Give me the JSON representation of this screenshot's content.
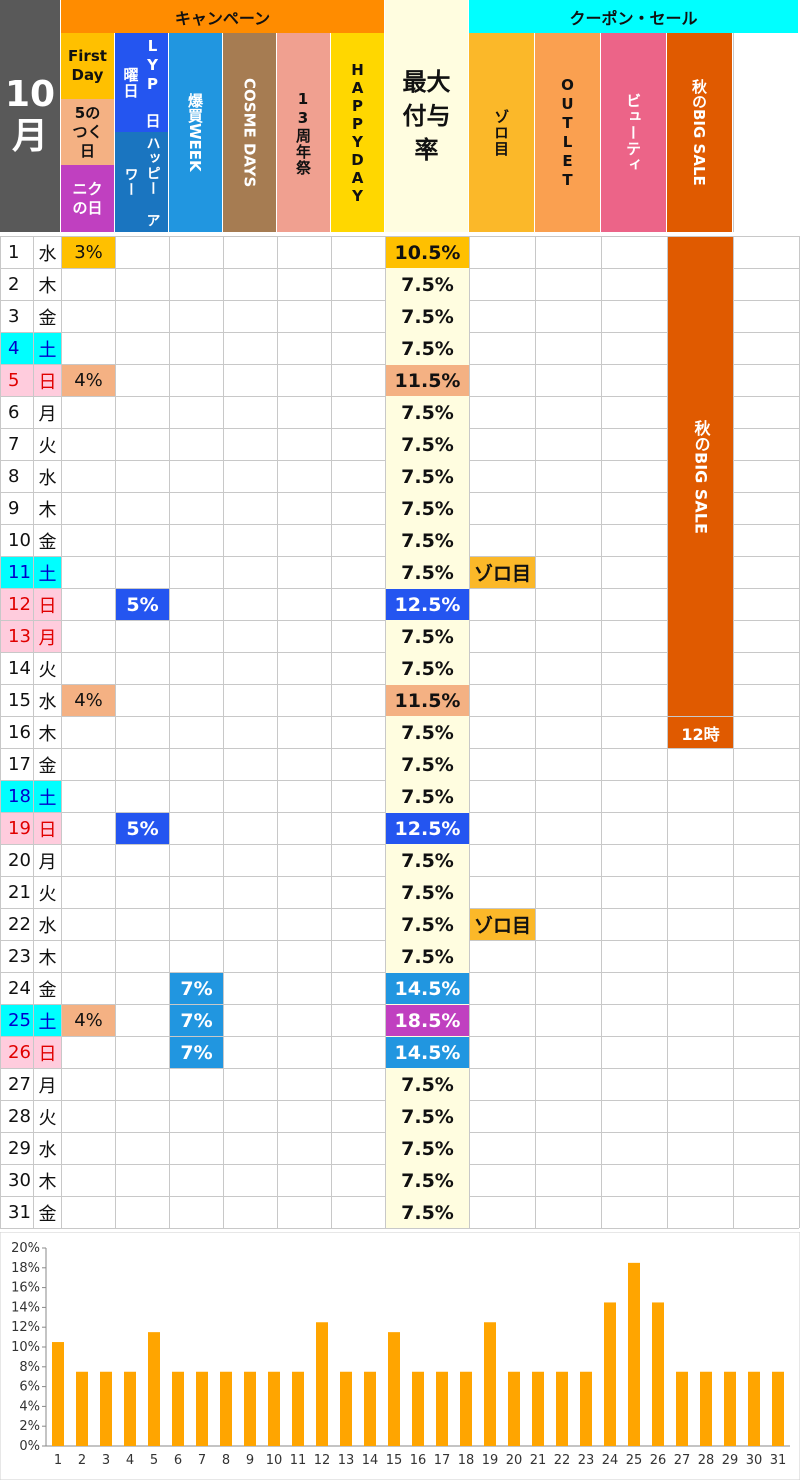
{
  "header": {
    "month": "10",
    "month_kanji": "月",
    "campaign_group": "キャンペーン",
    "coupon_group": "クーポン・セール",
    "first_day": "First Day",
    "five_day": "5の つく 日",
    "niku_day": "ニク の日",
    "lyp_sunday": "LYP 日曜日",
    "happy_hour": "ハッピー アワー",
    "bakugai": "爆買WEEK",
    "cosme": "COSME DAYS",
    "anniv": "13周年祭",
    "happyday": "HAPPYDAY",
    "max_rate": "最大付与率",
    "zorome": "ゾロ目",
    "outlet": "OUTLET",
    "beauty": "ビューティ",
    "big_sale": "秋のBIG SALE"
  },
  "big_sale_bar": {
    "label": "秋のBIG SALE",
    "end_label": "12時"
  },
  "colors": {
    "campaign": "#ff8c00",
    "coupon": "#00ffff",
    "first_day": "#ffc000",
    "five_day": "#f4b183",
    "niku": "#c040c0",
    "lyp": "#2455f0",
    "bakugai": "#2196e0",
    "cosme": "#a67c52",
    "anniv": "#f0a090",
    "happyday": "#ffd700",
    "max_rate_bg": "#fffde0",
    "zorome": "#fbb829",
    "outlet": "#faa050",
    "beauty": "#ec6488",
    "big_sale": "#e05a00",
    "saturday": "#00ffff",
    "holiday": "#ffccdd",
    "holiday_text": "#e00000",
    "saturday_text": "#0000cc",
    "bar": "#ffa500"
  },
  "rows": [
    {
      "day": "1",
      "dow": "水",
      "type": "",
      "fd": "3%",
      "fd_kind": "first",
      "lyp": "",
      "baku": "",
      "max": "10.5%",
      "max_kind": "first",
      "zoro": ""
    },
    {
      "day": "2",
      "dow": "木",
      "type": "",
      "fd": "",
      "fd_kind": "",
      "lyp": "",
      "baku": "",
      "max": "7.5%",
      "max_kind": "",
      "zoro": ""
    },
    {
      "day": "3",
      "dow": "金",
      "type": "",
      "fd": "",
      "fd_kind": "",
      "lyp": "",
      "baku": "",
      "max": "7.5%",
      "max_kind": "",
      "zoro": ""
    },
    {
      "day": "4",
      "dow": "土",
      "type": "sat",
      "fd": "",
      "fd_kind": "",
      "lyp": "",
      "baku": "",
      "max": "7.5%",
      "max_kind": "",
      "zoro": ""
    },
    {
      "day": "5",
      "dow": "日",
      "type": "sun",
      "fd": "4%",
      "fd_kind": "five",
      "lyp": "",
      "baku": "",
      "max": "11.5%",
      "max_kind": "five",
      "zoro": ""
    },
    {
      "day": "6",
      "dow": "月",
      "type": "",
      "fd": "",
      "fd_kind": "",
      "lyp": "",
      "baku": "",
      "max": "7.5%",
      "max_kind": "",
      "zoro": ""
    },
    {
      "day": "7",
      "dow": "火",
      "type": "",
      "fd": "",
      "fd_kind": "",
      "lyp": "",
      "baku": "",
      "max": "7.5%",
      "max_kind": "",
      "zoro": ""
    },
    {
      "day": "8",
      "dow": "水",
      "type": "",
      "fd": "",
      "fd_kind": "",
      "lyp": "",
      "baku": "",
      "max": "7.5%",
      "max_kind": "",
      "zoro": ""
    },
    {
      "day": "9",
      "dow": "木",
      "type": "",
      "fd": "",
      "fd_kind": "",
      "lyp": "",
      "baku": "",
      "max": "7.5%",
      "max_kind": "",
      "zoro": ""
    },
    {
      "day": "10",
      "dow": "金",
      "type": "",
      "fd": "",
      "fd_kind": "",
      "lyp": "",
      "baku": "",
      "max": "7.5%",
      "max_kind": "",
      "zoro": ""
    },
    {
      "day": "11",
      "dow": "土",
      "type": "sat",
      "fd": "",
      "fd_kind": "",
      "lyp": "",
      "baku": "",
      "max": "7.5%",
      "max_kind": "",
      "zoro": "ゾロ目"
    },
    {
      "day": "12",
      "dow": "日",
      "type": "sun",
      "fd": "",
      "fd_kind": "",
      "lyp": "5%",
      "baku": "",
      "max": "12.5%",
      "max_kind": "lyp",
      "zoro": ""
    },
    {
      "day": "13",
      "dow": "月",
      "type": "hol",
      "fd": "",
      "fd_kind": "",
      "lyp": "",
      "baku": "",
      "max": "7.5%",
      "max_kind": "",
      "zoro": ""
    },
    {
      "day": "14",
      "dow": "火",
      "type": "",
      "fd": "",
      "fd_kind": "",
      "lyp": "",
      "baku": "",
      "max": "7.5%",
      "max_kind": "",
      "zoro": ""
    },
    {
      "day": "15",
      "dow": "水",
      "type": "",
      "fd": "4%",
      "fd_kind": "five",
      "lyp": "",
      "baku": "",
      "max": "11.5%",
      "max_kind": "five",
      "zoro": ""
    },
    {
      "day": "16",
      "dow": "木",
      "type": "",
      "fd": "",
      "fd_kind": "",
      "lyp": "",
      "baku": "",
      "max": "7.5%",
      "max_kind": "",
      "zoro": ""
    },
    {
      "day": "17",
      "dow": "金",
      "type": "",
      "fd": "",
      "fd_kind": "",
      "lyp": "",
      "baku": "",
      "max": "7.5%",
      "max_kind": "",
      "zoro": ""
    },
    {
      "day": "18",
      "dow": "土",
      "type": "sat",
      "fd": "",
      "fd_kind": "",
      "lyp": "",
      "baku": "",
      "max": "7.5%",
      "max_kind": "",
      "zoro": ""
    },
    {
      "day": "19",
      "dow": "日",
      "type": "sun",
      "fd": "",
      "fd_kind": "",
      "lyp": "5%",
      "baku": "",
      "max": "12.5%",
      "max_kind": "lyp",
      "zoro": ""
    },
    {
      "day": "20",
      "dow": "月",
      "type": "",
      "fd": "",
      "fd_kind": "",
      "lyp": "",
      "baku": "",
      "max": "7.5%",
      "max_kind": "",
      "zoro": ""
    },
    {
      "day": "21",
      "dow": "火",
      "type": "",
      "fd": "",
      "fd_kind": "",
      "lyp": "",
      "baku": "",
      "max": "7.5%",
      "max_kind": "",
      "zoro": ""
    },
    {
      "day": "22",
      "dow": "水",
      "type": "",
      "fd": "",
      "fd_kind": "",
      "lyp": "",
      "baku": "",
      "max": "7.5%",
      "max_kind": "",
      "zoro": "ゾロ目"
    },
    {
      "day": "23",
      "dow": "木",
      "type": "",
      "fd": "",
      "fd_kind": "",
      "lyp": "",
      "baku": "",
      "max": "7.5%",
      "max_kind": "",
      "zoro": ""
    },
    {
      "day": "24",
      "dow": "金",
      "type": "",
      "fd": "",
      "fd_kind": "",
      "lyp": "",
      "baku": "7%",
      "max": "14.5%",
      "max_kind": "baku",
      "zoro": ""
    },
    {
      "day": "25",
      "dow": "土",
      "type": "sat",
      "fd": "4%",
      "fd_kind": "five",
      "lyp": "",
      "baku": "7%",
      "max": "18.5%",
      "max_kind": "combo",
      "zoro": ""
    },
    {
      "day": "26",
      "dow": "日",
      "type": "sun",
      "fd": "",
      "fd_kind": "",
      "lyp": "",
      "baku": "7%",
      "max": "14.5%",
      "max_kind": "baku",
      "zoro": ""
    },
    {
      "day": "27",
      "dow": "月",
      "type": "",
      "fd": "",
      "fd_kind": "",
      "lyp": "",
      "baku": "",
      "max": "7.5%",
      "max_kind": "",
      "zoro": ""
    },
    {
      "day": "28",
      "dow": "火",
      "type": "",
      "fd": "",
      "fd_kind": "",
      "lyp": "",
      "baku": "",
      "max": "7.5%",
      "max_kind": "",
      "zoro": ""
    },
    {
      "day": "29",
      "dow": "水",
      "type": "",
      "fd": "",
      "fd_kind": "",
      "lyp": "",
      "baku": "",
      "max": "7.5%",
      "max_kind": "",
      "zoro": ""
    },
    {
      "day": "30",
      "dow": "木",
      "type": "",
      "fd": "",
      "fd_kind": "",
      "lyp": "",
      "baku": "",
      "max": "7.5%",
      "max_kind": "",
      "zoro": ""
    },
    {
      "day": "31",
      "dow": "金",
      "type": "",
      "fd": "",
      "fd_kind": "",
      "lyp": "",
      "baku": "",
      "max": "7.5%",
      "max_kind": "",
      "zoro": ""
    }
  ],
  "chart_data": {
    "type": "bar",
    "categories": [
      "1",
      "2",
      "3",
      "4",
      "5",
      "6",
      "7",
      "8",
      "9",
      "10",
      "11",
      "12",
      "13",
      "14",
      "15",
      "16",
      "17",
      "18",
      "19",
      "20",
      "21",
      "22",
      "23",
      "24",
      "25",
      "26",
      "27",
      "28",
      "29",
      "30",
      "31"
    ],
    "values": [
      10.5,
      7.5,
      7.5,
      7.5,
      11.5,
      7.5,
      7.5,
      7.5,
      7.5,
      7.5,
      7.5,
      12.5,
      7.5,
      7.5,
      11.5,
      7.5,
      7.5,
      7.5,
      12.5,
      7.5,
      7.5,
      7.5,
      7.5,
      14.5,
      18.5,
      14.5,
      7.5,
      7.5,
      7.5,
      7.5,
      7.5
    ],
    "ylim": [
      0,
      20
    ],
    "yticks": [
      "0%",
      "2%",
      "4%",
      "6%",
      "8%",
      "10%",
      "12%",
      "14%",
      "16%",
      "18%",
      "20%"
    ],
    "grid": false,
    "title": "",
    "xlabel": "",
    "ylabel": ""
  }
}
